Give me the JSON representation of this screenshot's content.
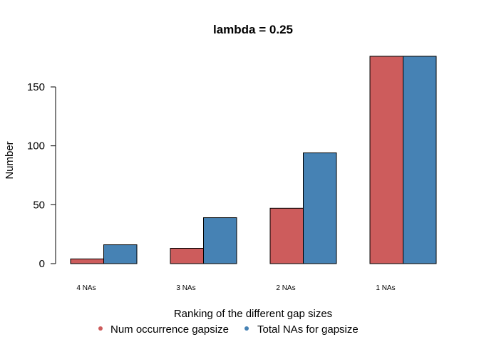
{
  "chart_data": {
    "type": "bar",
    "title": "lambda = 0.25",
    "xlabel": "Ranking of the different gap sizes",
    "ylabel": "Number",
    "categories": [
      "4 NAs",
      "3 NAs",
      "2 NAs",
      "1 NAs"
    ],
    "series": [
      {
        "name": "Num occurrence gapsize",
        "color": "#CD5C5C",
        "values": [
          4,
          13,
          47,
          176
        ]
      },
      {
        "name": "Total NAs for gapsize",
        "color": "#4682B4",
        "values": [
          16,
          39,
          94,
          176
        ]
      }
    ],
    "ylim": [
      0,
      176
    ],
    "yticks": [
      "0",
      "50",
      "100",
      "150"
    ],
    "ytick_values": [
      0,
      50,
      100,
      150
    ],
    "legend_position": "bottom",
    "grid": false
  }
}
